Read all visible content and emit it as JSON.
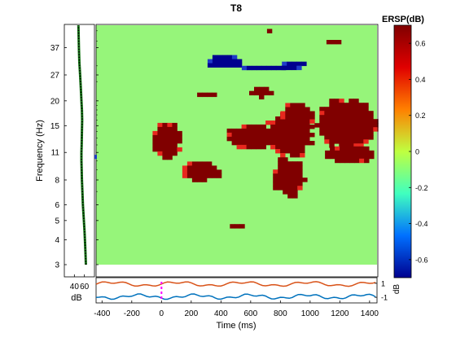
{
  "chart_data": {
    "type": "heatmap",
    "title": "T8",
    "ylabel": "Frequency (Hz)",
    "xlabel": "Time (ms)",
    "colorbar_title": "ERSP(dB)",
    "background_value": 0,
    "y_ticks": [
      "3",
      "4",
      "5",
      "6",
      "8",
      "11",
      "15",
      "20",
      "27",
      "37"
    ],
    "x_ticks": [
      "-400",
      "-200",
      "0",
      "200",
      "400",
      "600",
      "800",
      "1000",
      "1200",
      "1400"
    ],
    "x_range": [
      -440,
      1450
    ],
    "freq_range": [
      3,
      48
    ],
    "colorbar_ticks": [
      "0.6",
      "0.4",
      "0.2",
      "0",
      "-0.2",
      "-0.4",
      "-0.6"
    ],
    "colorbar_range": [
      -0.7,
      0.7
    ],
    "colorscale": [
      "#00008f",
      "#0070ff",
      "#40ffbf",
      "#bfff40",
      "#ff8000",
      "#e00000",
      "#800000"
    ],
    "clusters": [
      {
        "value": 0.66,
        "t": [
          -60,
          130
        ],
        "f": [
          10.3,
          15.5
        ]
      },
      {
        "value": 0.66,
        "t": [
          140,
          390
        ],
        "f": [
          7.8,
          9.9
        ]
      },
      {
        "value": 0.66,
        "t": [
          440,
          830
        ],
        "f": [
          11.5,
          15.2
        ]
      },
      {
        "value": 0.66,
        "t": [
          700,
          1020
        ],
        "f": [
          10.5,
          17.5
        ]
      },
      {
        "value": 0.66,
        "t": [
          750,
          960
        ],
        "f": [
          6.5,
          10.4
        ]
      },
      {
        "value": 0.66,
        "t": [
          800,
          1040
        ],
        "f": [
          14.5,
          19.5
        ]
      },
      {
        "value": 0.66,
        "t": [
          1030,
          1450
        ],
        "f": [
          11.5,
          20.5
        ]
      },
      {
        "value": 0.66,
        "t": [
          1100,
          1450
        ],
        "f": [
          9.8,
          11.8
        ]
      },
      {
        "value": 0.66,
        "t": [
          590,
          760
        ],
        "f": [
          21.0,
          23.5
        ]
      },
      {
        "value": 0.66,
        "t": [
          240,
          380
        ],
        "f": [
          21.0,
          22.0
        ]
      },
      {
        "value": 0.66,
        "t": [
          460,
          560
        ],
        "f": [
          4.5,
          4.8
        ]
      },
      {
        "value": 0.66,
        "t": [
          710,
          760
        ],
        "f": [
          44.0,
          46.0
        ]
      },
      {
        "value": 0.66,
        "t": [
          1110,
          1210
        ],
        "f": [
          38.5,
          40.5
        ]
      },
      {
        "value": -0.64,
        "t": [
          310,
          550
        ],
        "f": [
          29.0,
          34.0
        ]
      },
      {
        "value": -0.64,
        "t": [
          810,
          960
        ],
        "f": [
          29.0,
          31.5
        ]
      },
      {
        "value": -0.64,
        "t": [
          540,
          850
        ],
        "f": [
          28.5,
          30.0
        ]
      }
    ],
    "spectrum_panel": {
      "xlabel": "dB",
      "x_ticks": [
        "40",
        "60"
      ],
      "x_range": [
        20,
        80
      ]
    },
    "erp_panel": {
      "ylabel": "dB",
      "y_ticks": [
        "1",
        "-1"
      ],
      "y_range": [
        -1.8,
        1.8
      ]
    },
    "colors": {
      "background_cell": "#96f57a",
      "positive_cell": "#800000",
      "negative_cell": "#00008f"
    }
  }
}
